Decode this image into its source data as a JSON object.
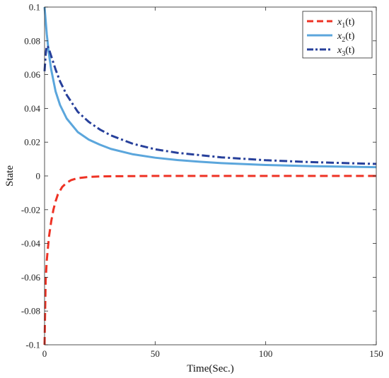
{
  "chart_data": {
    "type": "line",
    "title": "",
    "xlabel": "Time(Sec.)",
    "ylabel": "State",
    "xlim": [
      0,
      150
    ],
    "ylim": [
      -0.1,
      0.1
    ],
    "xticks": [
      0,
      50,
      100,
      150
    ],
    "xtick_labels": [
      "0",
      "50",
      "100",
      "150"
    ],
    "yticks": [
      -0.1,
      -0.08,
      -0.06,
      -0.04,
      -0.02,
      0,
      0.02,
      0.04,
      0.06,
      0.08,
      0.1
    ],
    "ytick_labels": [
      "-0.1",
      "-0.08",
      "-0.06",
      "-0.04",
      "-0.02",
      "0",
      "0.02",
      "0.04",
      "0.06",
      "0.08",
      "0.1"
    ],
    "grid": false,
    "legend_position": "top-right",
    "series": [
      {
        "name": "x1(t)",
        "legend_main": "x",
        "legend_sub": "1",
        "legend_suffix": "(t)",
        "color": "#ee3224",
        "style": "dashed",
        "x": [
          0,
          0.5,
          1,
          1.5,
          2,
          3,
          4,
          5,
          6,
          8,
          10,
          12,
          15,
          20,
          25,
          30,
          40,
          50,
          60,
          80,
          100,
          120,
          150
        ],
        "y": [
          -0.1,
          -0.062,
          -0.05,
          -0.043,
          -0.036,
          -0.027,
          -0.02,
          -0.015,
          -0.011,
          -0.0065,
          -0.004,
          -0.0025,
          -0.0013,
          -0.0006,
          -0.0003,
          -0.0002,
          -0.0001,
          0,
          0,
          0,
          0,
          0,
          0
        ]
      },
      {
        "name": "x2(t)",
        "legend_main": "x",
        "legend_sub": "2",
        "legend_suffix": "(t)",
        "color": "#5ba6dc",
        "style": "solid",
        "x": [
          0,
          1,
          2,
          3,
          5,
          7,
          10,
          15,
          20,
          25,
          30,
          40,
          50,
          60,
          70,
          80,
          100,
          120,
          150
        ],
        "y": [
          0.1,
          0.084,
          0.072,
          0.063,
          0.05,
          0.042,
          0.034,
          0.026,
          0.0215,
          0.0185,
          0.016,
          0.0128,
          0.0108,
          0.0094,
          0.0084,
          0.0076,
          0.0065,
          0.0058,
          0.0052
        ]
      },
      {
        "name": "x3(t)",
        "legend_main": "x",
        "legend_sub": "3",
        "legend_suffix": "(t)",
        "color": "#27409b",
        "style": "dashdot",
        "x": [
          0,
          0.5,
          1,
          1.5,
          2,
          3,
          5,
          7,
          10,
          15,
          20,
          25,
          30,
          40,
          50,
          60,
          80,
          100,
          120,
          150
        ],
        "y": [
          0.062,
          0.072,
          0.077,
          0.0765,
          0.075,
          0.071,
          0.063,
          0.056,
          0.048,
          0.038,
          0.032,
          0.0275,
          0.024,
          0.019,
          0.0158,
          0.0137,
          0.011,
          0.0093,
          0.0082,
          0.0071
        ]
      }
    ]
  }
}
